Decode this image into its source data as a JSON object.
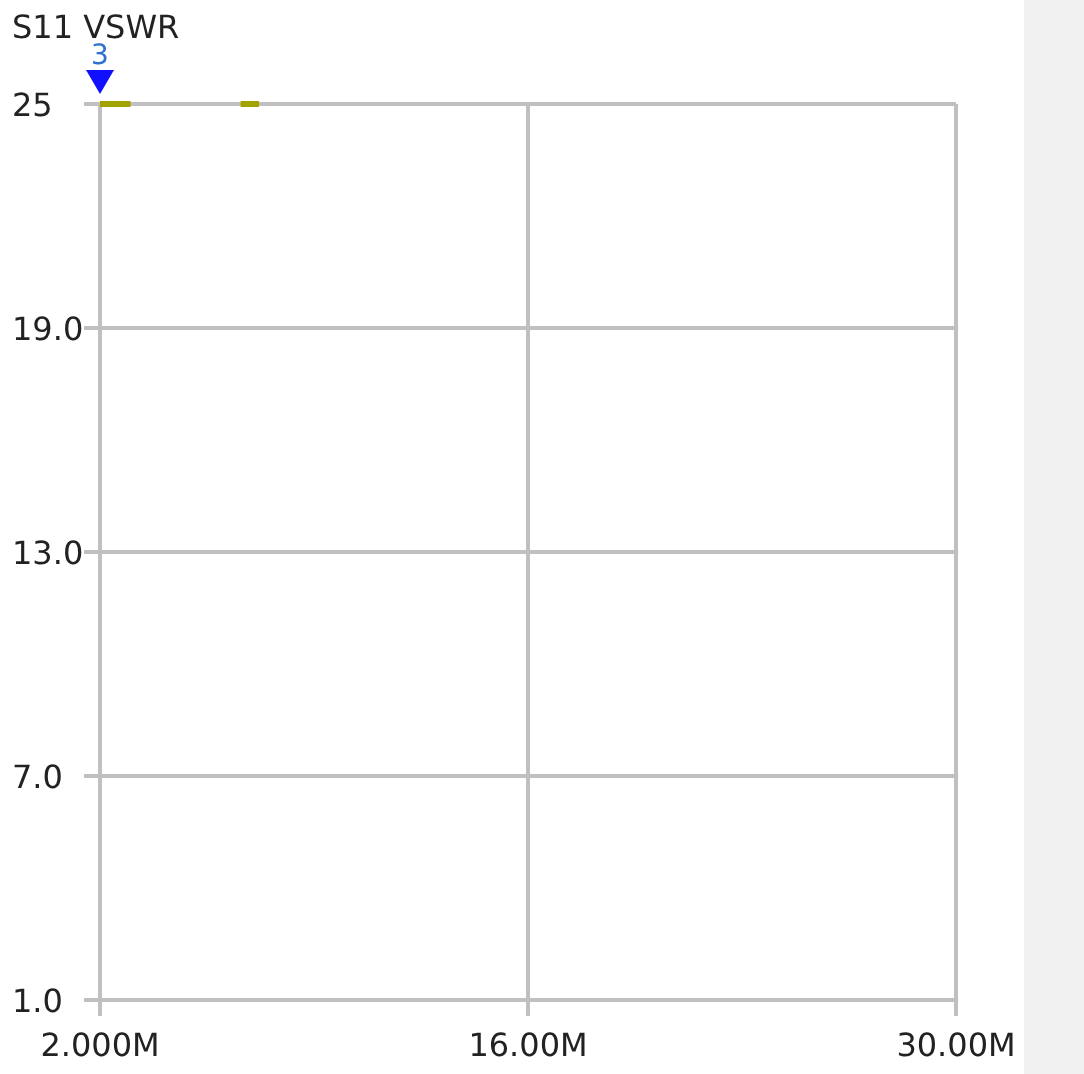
{
  "chart_data": {
    "type": "line",
    "title": "S11 VSWR",
    "series": [
      {
        "color": "#a3a300",
        "x": [
          2,
          3
        ],
        "values": [
          25,
          25
        ]
      },
      {
        "color": "#a3a300",
        "x": [
          6.6,
          7.2
        ],
        "values": [
          25,
          25
        ]
      }
    ],
    "xlim": [
      2,
      30
    ],
    "xticks": [
      {
        "value": 2,
        "label": "2.000M"
      },
      {
        "value": 16,
        "label": "16.00M"
      },
      {
        "value": 30,
        "label": "30.00M"
      }
    ],
    "ylim": [
      1,
      25
    ],
    "yticks": [
      {
        "value": 1,
        "label": "1.0"
      },
      {
        "value": 7,
        "label": "7.0"
      },
      {
        "value": 13,
        "label": "13.0"
      },
      {
        "value": 19,
        "label": "19.0"
      },
      {
        "value": 25,
        "label": "25"
      }
    ],
    "grid": true,
    "annotations": [
      {
        "text": "3",
        "x": 2,
        "y": 25
      }
    ]
  }
}
